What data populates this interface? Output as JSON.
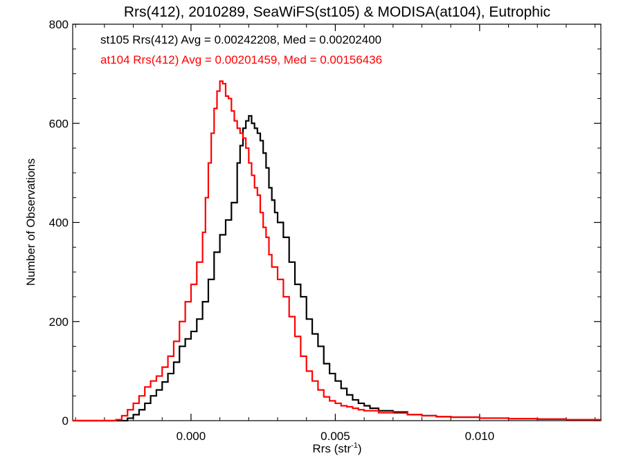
{
  "chart_data": {
    "type": "line",
    "title": "Rrs(412), 2010289, SeaWiFS(st105) & MODISA(at104), Eutrophic",
    "xlabel_main": "Rrs (str",
    "xlabel_sup": "-1",
    "xlabel_close": ")",
    "ylabel": "Number of Observations",
    "xlim": [
      -0.0041,
      0.0142
    ],
    "ylim": [
      0,
      800
    ],
    "x_ticks": [
      {
        "value": 0.0,
        "label": "0.000"
      },
      {
        "value": 0.005,
        "label": "0.005"
      },
      {
        "value": 0.01,
        "label": "0.010"
      }
    ],
    "y_ticks": [
      {
        "value": 0,
        "label": "0"
      },
      {
        "value": 200,
        "label": "200"
      },
      {
        "value": 400,
        "label": "400"
      },
      {
        "value": 600,
        "label": "600"
      },
      {
        "value": 800,
        "label": "800"
      }
    ],
    "legend": [
      {
        "text": "st105 Rrs(412) Avg = 0.00242208, Med = 0.00202400",
        "color": "#000000"
      },
      {
        "text": "at104 Rrs(412) Avg = 0.00201459, Med = 0.00156436",
        "color": "#ff0000"
      }
    ],
    "series": [
      {
        "color": "#000000",
        "points": [
          [
            -0.0041,
            0
          ],
          [
            -0.003,
            0
          ],
          [
            -0.0025,
            0
          ],
          [
            -0.0022,
            5
          ],
          [
            -0.002,
            12
          ],
          [
            -0.0018,
            22
          ],
          [
            -0.0016,
            35
          ],
          [
            -0.0014,
            50
          ],
          [
            -0.0012,
            62
          ],
          [
            -0.001,
            78
          ],
          [
            -0.0008,
            95
          ],
          [
            -0.0006,
            118
          ],
          [
            -0.0004,
            150
          ],
          [
            -0.0002,
            165
          ],
          [
            0.0,
            180
          ],
          [
            0.0002,
            205
          ],
          [
            0.0004,
            240
          ],
          [
            0.0006,
            285
          ],
          [
            0.0008,
            340
          ],
          [
            0.001,
            375
          ],
          [
            0.0012,
            405
          ],
          [
            0.0014,
            440
          ],
          [
            0.0016,
            520
          ],
          [
            0.0017,
            555
          ],
          [
            0.0018,
            590
          ],
          [
            0.0019,
            605
          ],
          [
            0.002,
            615
          ],
          [
            0.0021,
            600
          ],
          [
            0.0022,
            590
          ],
          [
            0.0023,
            580
          ],
          [
            0.0024,
            565
          ],
          [
            0.0025,
            540
          ],
          [
            0.0026,
            510
          ],
          [
            0.0027,
            470
          ],
          [
            0.0028,
            445
          ],
          [
            0.0029,
            420
          ],
          [
            0.003,
            400
          ],
          [
            0.0032,
            370
          ],
          [
            0.0034,
            320
          ],
          [
            0.0036,
            275
          ],
          [
            0.0038,
            250
          ],
          [
            0.004,
            205
          ],
          [
            0.0042,
            175
          ],
          [
            0.0044,
            150
          ],
          [
            0.0046,
            115
          ],
          [
            0.0048,
            95
          ],
          [
            0.005,
            80
          ],
          [
            0.0052,
            65
          ],
          [
            0.0054,
            52
          ],
          [
            0.0056,
            42
          ],
          [
            0.0058,
            35
          ],
          [
            0.006,
            30
          ],
          [
            0.0062,
            25
          ],
          [
            0.0065,
            20
          ],
          [
            0.007,
            16
          ],
          [
            0.0075,
            12
          ],
          [
            0.008,
            10
          ],
          [
            0.0085,
            8
          ],
          [
            0.009,
            7
          ],
          [
            0.01,
            5
          ],
          [
            0.011,
            4
          ],
          [
            0.012,
            3
          ],
          [
            0.013,
            2
          ],
          [
            0.0142,
            1
          ]
        ]
      },
      {
        "color": "#ff0000",
        "points": [
          [
            -0.0041,
            0
          ],
          [
            -0.003,
            0
          ],
          [
            -0.0026,
            2
          ],
          [
            -0.0024,
            10
          ],
          [
            -0.0022,
            22
          ],
          [
            -0.002,
            35
          ],
          [
            -0.0018,
            50
          ],
          [
            -0.0016,
            68
          ],
          [
            -0.0014,
            80
          ],
          [
            -0.0012,
            90
          ],
          [
            -0.001,
            108
          ],
          [
            -0.0008,
            130
          ],
          [
            -0.0006,
            160
          ],
          [
            -0.0004,
            200
          ],
          [
            -0.0002,
            240
          ],
          [
            0.0,
            275
          ],
          [
            0.0002,
            320
          ],
          [
            0.0004,
            380
          ],
          [
            0.0005,
            450
          ],
          [
            0.0006,
            520
          ],
          [
            0.0007,
            580
          ],
          [
            0.0008,
            630
          ],
          [
            0.0009,
            665
          ],
          [
            0.001,
            685
          ],
          [
            0.0011,
            680
          ],
          [
            0.0012,
            655
          ],
          [
            0.0013,
            650
          ],
          [
            0.0014,
            625
          ],
          [
            0.0015,
            605
          ],
          [
            0.0016,
            590
          ],
          [
            0.0017,
            580
          ],
          [
            0.0018,
            570
          ],
          [
            0.0019,
            550
          ],
          [
            0.002,
            520
          ],
          [
            0.0021,
            495
          ],
          [
            0.0022,
            470
          ],
          [
            0.0023,
            455
          ],
          [
            0.0024,
            420
          ],
          [
            0.0025,
            390
          ],
          [
            0.0026,
            370
          ],
          [
            0.0027,
            335
          ],
          [
            0.0028,
            310
          ],
          [
            0.003,
            285
          ],
          [
            0.0032,
            250
          ],
          [
            0.0034,
            210
          ],
          [
            0.0036,
            170
          ],
          [
            0.0038,
            130
          ],
          [
            0.004,
            100
          ],
          [
            0.0042,
            80
          ],
          [
            0.0044,
            62
          ],
          [
            0.0046,
            48
          ],
          [
            0.0048,
            40
          ],
          [
            0.005,
            35
          ],
          [
            0.0052,
            30
          ],
          [
            0.0054,
            28
          ],
          [
            0.0056,
            25
          ],
          [
            0.0058,
            22
          ],
          [
            0.006,
            20
          ],
          [
            0.0065,
            16
          ],
          [
            0.007,
            18
          ],
          [
            0.0075,
            12
          ],
          [
            0.008,
            10
          ],
          [
            0.0085,
            8
          ],
          [
            0.009,
            7
          ],
          [
            0.01,
            5
          ],
          [
            0.011,
            4
          ],
          [
            0.012,
            3
          ],
          [
            0.013,
            2
          ],
          [
            0.0142,
            1
          ]
        ]
      }
    ]
  }
}
